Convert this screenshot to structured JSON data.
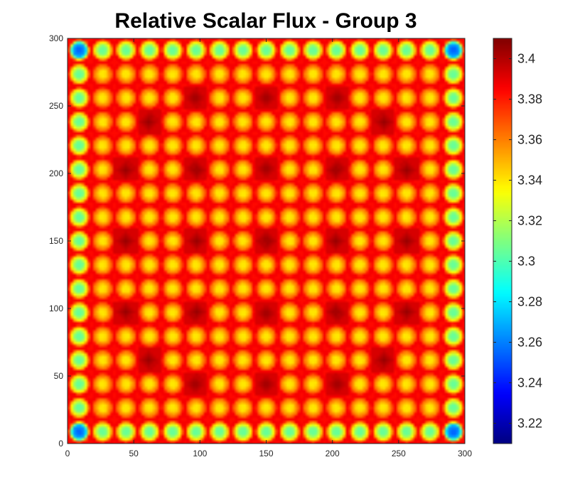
{
  "chart_data": {
    "type": "heatmap",
    "title": "Relative Scalar Flux - Group 3",
    "xlabel": "",
    "ylabel": "",
    "xlim": [
      0,
      300
    ],
    "ylim": [
      0,
      300
    ],
    "x_ticks": [
      "0",
      "50",
      "100",
      "150",
      "200",
      "250",
      "300"
    ],
    "y_ticks": [
      "0",
      "50",
      "100",
      "150",
      "200",
      "250",
      "300"
    ],
    "colorbar": {
      "colormap": "jet",
      "range": [
        3.21,
        3.41
      ],
      "ticks": [
        "3.22",
        "3.24",
        "3.26",
        "3.28",
        "3.3",
        "3.32",
        "3.34",
        "3.36",
        "3.38",
        "3.4"
      ]
    },
    "lattice": {
      "pins_per_side": 17,
      "pin_pitch": 17.65,
      "base_value": 3.385,
      "pin_center_value": 3.34,
      "edge_pin_center_value": 3.305,
      "corner_pin_center_value": 3.255,
      "hot_spot_value": 3.405,
      "hot_spots_pin_index": [
        [
          5,
          2
        ],
        [
          8,
          2
        ],
        [
          11,
          2
        ],
        [
          3,
          3
        ],
        [
          13,
          3
        ],
        [
          2,
          5
        ],
        [
          5,
          5
        ],
        [
          8,
          5
        ],
        [
          11,
          5
        ],
        [
          14,
          5
        ],
        [
          2,
          8
        ],
        [
          5,
          8
        ],
        [
          8,
          8
        ],
        [
          11,
          8
        ],
        [
          14,
          8
        ],
        [
          2,
          11
        ],
        [
          5,
          11
        ],
        [
          8,
          11
        ],
        [
          11,
          11
        ],
        [
          14,
          11
        ],
        [
          3,
          13
        ],
        [
          13,
          13
        ],
        [
          5,
          14
        ],
        [
          8,
          14
        ],
        [
          11,
          14
        ]
      ]
    }
  }
}
